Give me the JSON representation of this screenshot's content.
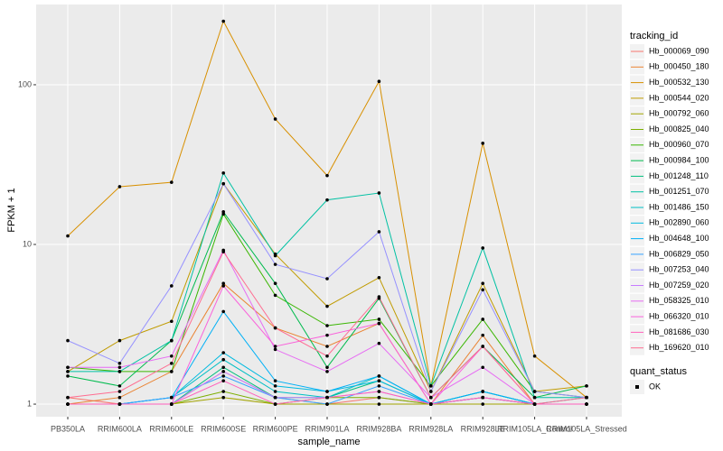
{
  "chart_data": {
    "type": "line",
    "x_label": "sample_name",
    "y_label": "FPKM + 1",
    "log_scale": true,
    "grid": true,
    "legend_title": "tracking_id",
    "categories": [
      "PB350LA",
      "RRIM600LA",
      "RRIM600LE",
      "RRIM600SE",
      "RRIM600PE",
      "RRIM901LA",
      "RRIM928BA",
      "RRIM928LA",
      "RRIM928LE",
      "RRIM105LA_Control",
      "RRIM105LA_Stressed"
    ],
    "ylim": [
      0.834,
      318
    ],
    "yticks": [
      1,
      10,
      100
    ],
    "series": [
      {
        "name": "Hb_000069_090",
        "color": "#F8766D",
        "values": [
          1.1,
          1.0,
          1.0,
          1.6,
          1.1,
          1.0,
          1.1,
          1.0,
          1.1,
          1.0,
          1.0
        ]
      },
      {
        "name": "Hb_000450_180",
        "color": "#EA8331",
        "values": [
          1.0,
          1.1,
          1.6,
          5.7,
          3.0,
          2.3,
          3.2,
          1.0,
          2.7,
          1.0,
          1.0
        ]
      },
      {
        "name": "Hb_000532_130",
        "color": "#D89000",
        "values": [
          11.3,
          23,
          24.5,
          250,
          61,
          27,
          105,
          1.3,
          43,
          2.0,
          1.1
        ]
      },
      {
        "name": "Hb_000544_020",
        "color": "#C09B00",
        "values": [
          1.6,
          2.5,
          3.3,
          24,
          8.7,
          4.1,
          6.2,
          1.2,
          5.7,
          1.2,
          1.3
        ]
      },
      {
        "name": "Hb_000792_060",
        "color": "#A3A500",
        "values": [
          1.0,
          1.0,
          1.0,
          1.1,
          1.0,
          1.0,
          1.0,
          1.0,
          1.0,
          1.0,
          1.0
        ]
      },
      {
        "name": "Hb_000825_040",
        "color": "#7CAE00",
        "values": [
          1.0,
          1.0,
          1.0,
          1.2,
          1.0,
          1.1,
          1.1,
          1.0,
          1.1,
          1.0,
          1.0
        ]
      },
      {
        "name": "Hb_000960_070",
        "color": "#39B600",
        "values": [
          1.7,
          1.6,
          1.6,
          15.5,
          4.8,
          3.1,
          3.4,
          1.3,
          3.4,
          1.2,
          1.1
        ]
      },
      {
        "name": "Hb_000984_100",
        "color": "#00BB4E",
        "values": [
          1.5,
          1.3,
          2.5,
          16,
          5.7,
          1.7,
          4.6,
          1.1,
          2.3,
          1.1,
          1.3
        ]
      },
      {
        "name": "Hb_001248_110",
        "color": "#00BF7D",
        "values": [
          1.0,
          1.0,
          1.0,
          1.7,
          1.1,
          1.1,
          1.4,
          1.0,
          1.2,
          1.0,
          1.0
        ]
      },
      {
        "name": "Hb_001251_070",
        "color": "#00C1A3",
        "values": [
          1.6,
          1.6,
          2.5,
          28,
          8.5,
          19,
          21,
          1.3,
          9.5,
          1.1,
          1.1
        ]
      },
      {
        "name": "Hb_001486_150",
        "color": "#00BFC4",
        "values": [
          1.0,
          1.0,
          1.1,
          1.9,
          1.2,
          1.1,
          1.5,
          1.0,
          1.2,
          1.0,
          1.1
        ]
      },
      {
        "name": "Hb_002890_060",
        "color": "#00BAE0",
        "values": [
          1.0,
          1.0,
          1.1,
          2.1,
          1.3,
          1.2,
          1.4,
          1.0,
          1.2,
          1.0,
          1.0
        ]
      },
      {
        "name": "Hb_004648_100",
        "color": "#00B0F6",
        "values": [
          1.0,
          1.0,
          1.1,
          3.8,
          1.4,
          1.2,
          1.5,
          1.0,
          1.2,
          1.0,
          1.0
        ]
      },
      {
        "name": "Hb_006829_050",
        "color": "#35A2FF",
        "values": [
          1.0,
          1.0,
          1.1,
          1.5,
          1.1,
          1.0,
          1.3,
          1.0,
          1.1,
          1.0,
          1.0
        ]
      },
      {
        "name": "Hb_007253_040",
        "color": "#9590FF",
        "values": [
          2.5,
          1.8,
          5.5,
          24,
          7.5,
          6.1,
          12,
          1.2,
          5.2,
          1.2,
          1.1
        ]
      },
      {
        "name": "Hb_007259_020",
        "color": "#C77CFF",
        "values": [
          1.0,
          1.0,
          1.0,
          1.6,
          1.1,
          1.1,
          1.2,
          1.0,
          1.1,
          1.0,
          1.0
        ]
      },
      {
        "name": "Hb_058325_010",
        "color": "#E76BF3",
        "values": [
          1.7,
          1.7,
          2.0,
          9.2,
          2.2,
          1.6,
          2.4,
          1.1,
          1.7,
          1.0,
          1.0
        ]
      },
      {
        "name": "Hb_066320_010",
        "color": "#FA62DB",
        "values": [
          1.0,
          1.0,
          1.0,
          5.5,
          2.3,
          2.7,
          3.2,
          1.0,
          2.3,
          1.0,
          1.0
        ]
      },
      {
        "name": "Hb_081686_030",
        "color": "#FF62BC",
        "values": [
          1.0,
          1.0,
          1.0,
          1.4,
          1.0,
          1.1,
          1.2,
          1.0,
          1.1,
          1.0,
          1.0
        ]
      },
      {
        "name": "Hb_169620_010",
        "color": "#FF6C91",
        "values": [
          1.1,
          1.2,
          1.8,
          9,
          3,
          2.0,
          4.7,
          1.1,
          2.3,
          1.0,
          1.1
        ]
      }
    ],
    "point_legend": {
      "title": "quant_status",
      "labels": [
        "OK"
      ],
      "color": "#000000"
    }
  }
}
